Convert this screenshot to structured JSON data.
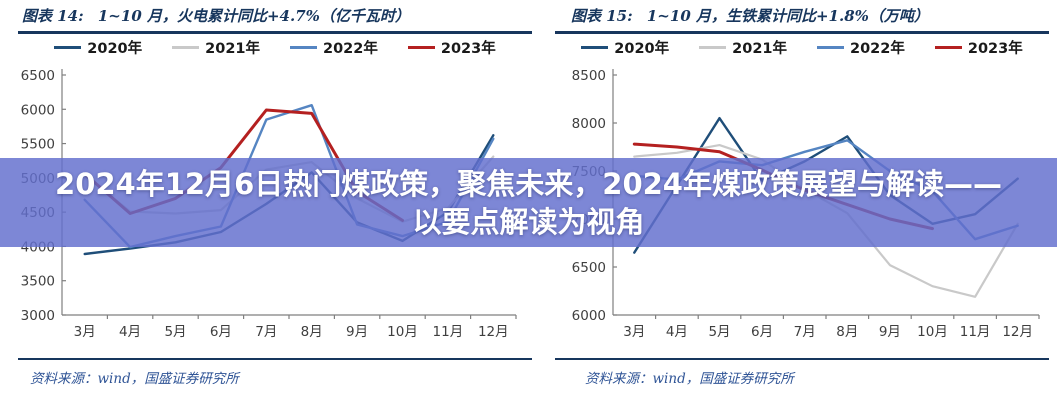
{
  "banner": {
    "line1": "2024年12月6日热门煤政策，聚焦未来，2024年煤政策展望与解读——",
    "line2": "以要点解读为视角",
    "bg_color": "#636fce",
    "text_color": "#ffffff"
  },
  "colors": {
    "title_navy": "#17365d",
    "source_blue": "#2f5496",
    "axis_gray": "#7f7f7f"
  },
  "chart_data": [
    {
      "type": "line",
      "panel": "left",
      "title_prefix": "图表 14:",
      "title": "1~10 月，火电累计同比+4.7%（亿千瓦时）",
      "categories": [
        "3月",
        "4月",
        "5月",
        "6月",
        "7月",
        "8月",
        "9月",
        "10月",
        "11月",
        "12月"
      ],
      "ylim": [
        3000,
        6500
      ],
      "ytick_step": 500,
      "grid": false,
      "legend_position": "top",
      "series": [
        {
          "name": "2020年",
          "color": "#1f4e79",
          "stroke_width": 2.4,
          "values": [
            3890,
            3970,
            4060,
            4210,
            4620,
            5080,
            4350,
            4080,
            4500,
            5620
          ]
        },
        {
          "name": "2021年",
          "color": "#c9c9c9",
          "stroke_width": 2.2,
          "values": [
            5040,
            4510,
            4480,
            4530,
            5120,
            5230,
            4700,
            4360,
            4560,
            5310
          ]
        },
        {
          "name": "2022年",
          "color": "#5585c2",
          "stroke_width": 2.4,
          "values": [
            4680,
            3990,
            4150,
            4290,
            5850,
            6060,
            4320,
            4150,
            4360,
            5570
          ]
        },
        {
          "name": "2023年",
          "color": "#b42020",
          "stroke_width": 3.0,
          "values": [
            5060,
            4480,
            4700,
            5150,
            5990,
            5940,
            4800,
            4380
          ]
        }
      ],
      "source": "资料来源：wind，国盛证券研究所"
    },
    {
      "type": "line",
      "panel": "right",
      "title_prefix": "图表 15:",
      "title": "1~10 月，生铁累计同比+1.8%（万吨）",
      "categories": [
        "3月",
        "4月",
        "5月",
        "6月",
        "7月",
        "8月",
        "9月",
        "10月",
        "11月",
        "12月"
      ],
      "ylim": [
        6000,
        8500
      ],
      "ytick_step": 500,
      "grid": false,
      "legend_position": "top",
      "series": [
        {
          "name": "2020年",
          "color": "#1f4e79",
          "stroke_width": 2.4,
          "values": [
            6650,
            7350,
            8050,
            7400,
            7600,
            7860,
            7250,
            6950,
            7050,
            7420
          ]
        },
        {
          "name": "2021年",
          "color": "#c9c9c9",
          "stroke_width": 2.2,
          "values": [
            7650,
            7690,
            7770,
            7620,
            7310,
            7060,
            6520,
            6300,
            6190,
            6950
          ]
        },
        {
          "name": "2022年",
          "color": "#5585c2",
          "stroke_width": 2.4,
          "values": [
            7450,
            7410,
            7600,
            7560,
            7700,
            7820,
            7500,
            7290,
            6790,
            6930
          ]
        },
        {
          "name": "2023年",
          "color": "#b42020",
          "stroke_width": 3.0,
          "values": [
            7780,
            7750,
            7700,
            7510,
            7300,
            7150,
            7000,
            6900
          ]
        }
      ],
      "source": "资料来源：wind，国盛证券研究所"
    }
  ]
}
